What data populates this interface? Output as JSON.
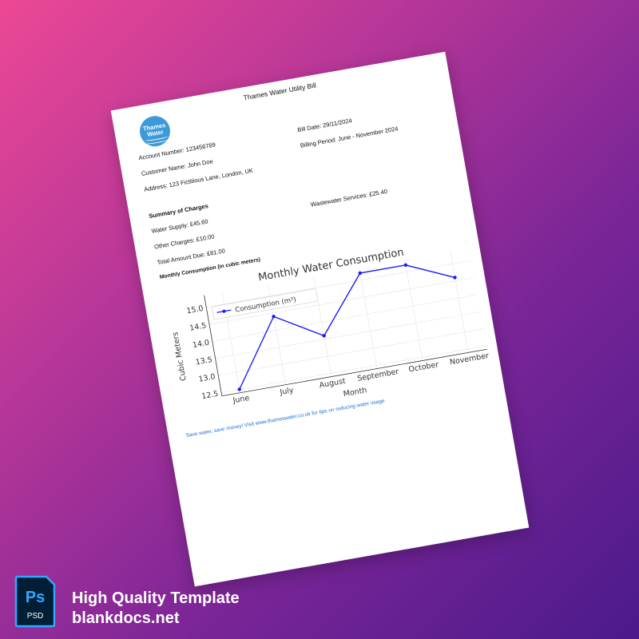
{
  "document": {
    "title": "Thames Water Utility Bill",
    "logo_text": [
      "Thames",
      "Water"
    ],
    "account_number": "Account Number: 123456789",
    "customer_name": "Customer Name: John Doe",
    "address": "Address: 123 Fictitious Lane, London, UK",
    "bill_date": "Bill Date: 29/11/2024",
    "billing_period": "Billing Period: June - November 2024",
    "summary_heading": "Summary of Charges",
    "water_supply": "Water Supply: £45.60",
    "wastewater": "Wastewater Services: £25.40",
    "other_charges": "Other Charges: £10.00",
    "total_due": "Total Amount Due: £81.00",
    "consumption_heading": "Monthly Consumption (in cubic meters)",
    "footer": "Save water, save money! Visit www.thameswater.co.uk for tips on reducing water usage."
  },
  "chart_data": {
    "type": "line",
    "title": "Monthly Water Consumption",
    "xlabel": "Month",
    "ylabel": "Cubic Meters",
    "categories": [
      "June",
      "July",
      "August",
      "September",
      "October",
      "November"
    ],
    "series": [
      {
        "name": "Consumption (m³)",
        "values": [
          12.5,
          14.4,
          13.6,
          15.2,
          15.2,
          14.6
        ],
        "color": "#1a1aff"
      }
    ],
    "yticks": [
      "12.5",
      "13.0",
      "13.5",
      "14.0",
      "14.5",
      "15.0"
    ],
    "ylim": [
      12.4,
      15.35
    ],
    "grid": true,
    "legend": "top-left"
  },
  "banner": {
    "badge_top": "Ps",
    "badge_bottom": "PSD",
    "line1": "High Quality Template",
    "line2": "blankdocs.net",
    "badge_bg": "#001e36",
    "badge_accent": "#31a8ff"
  }
}
